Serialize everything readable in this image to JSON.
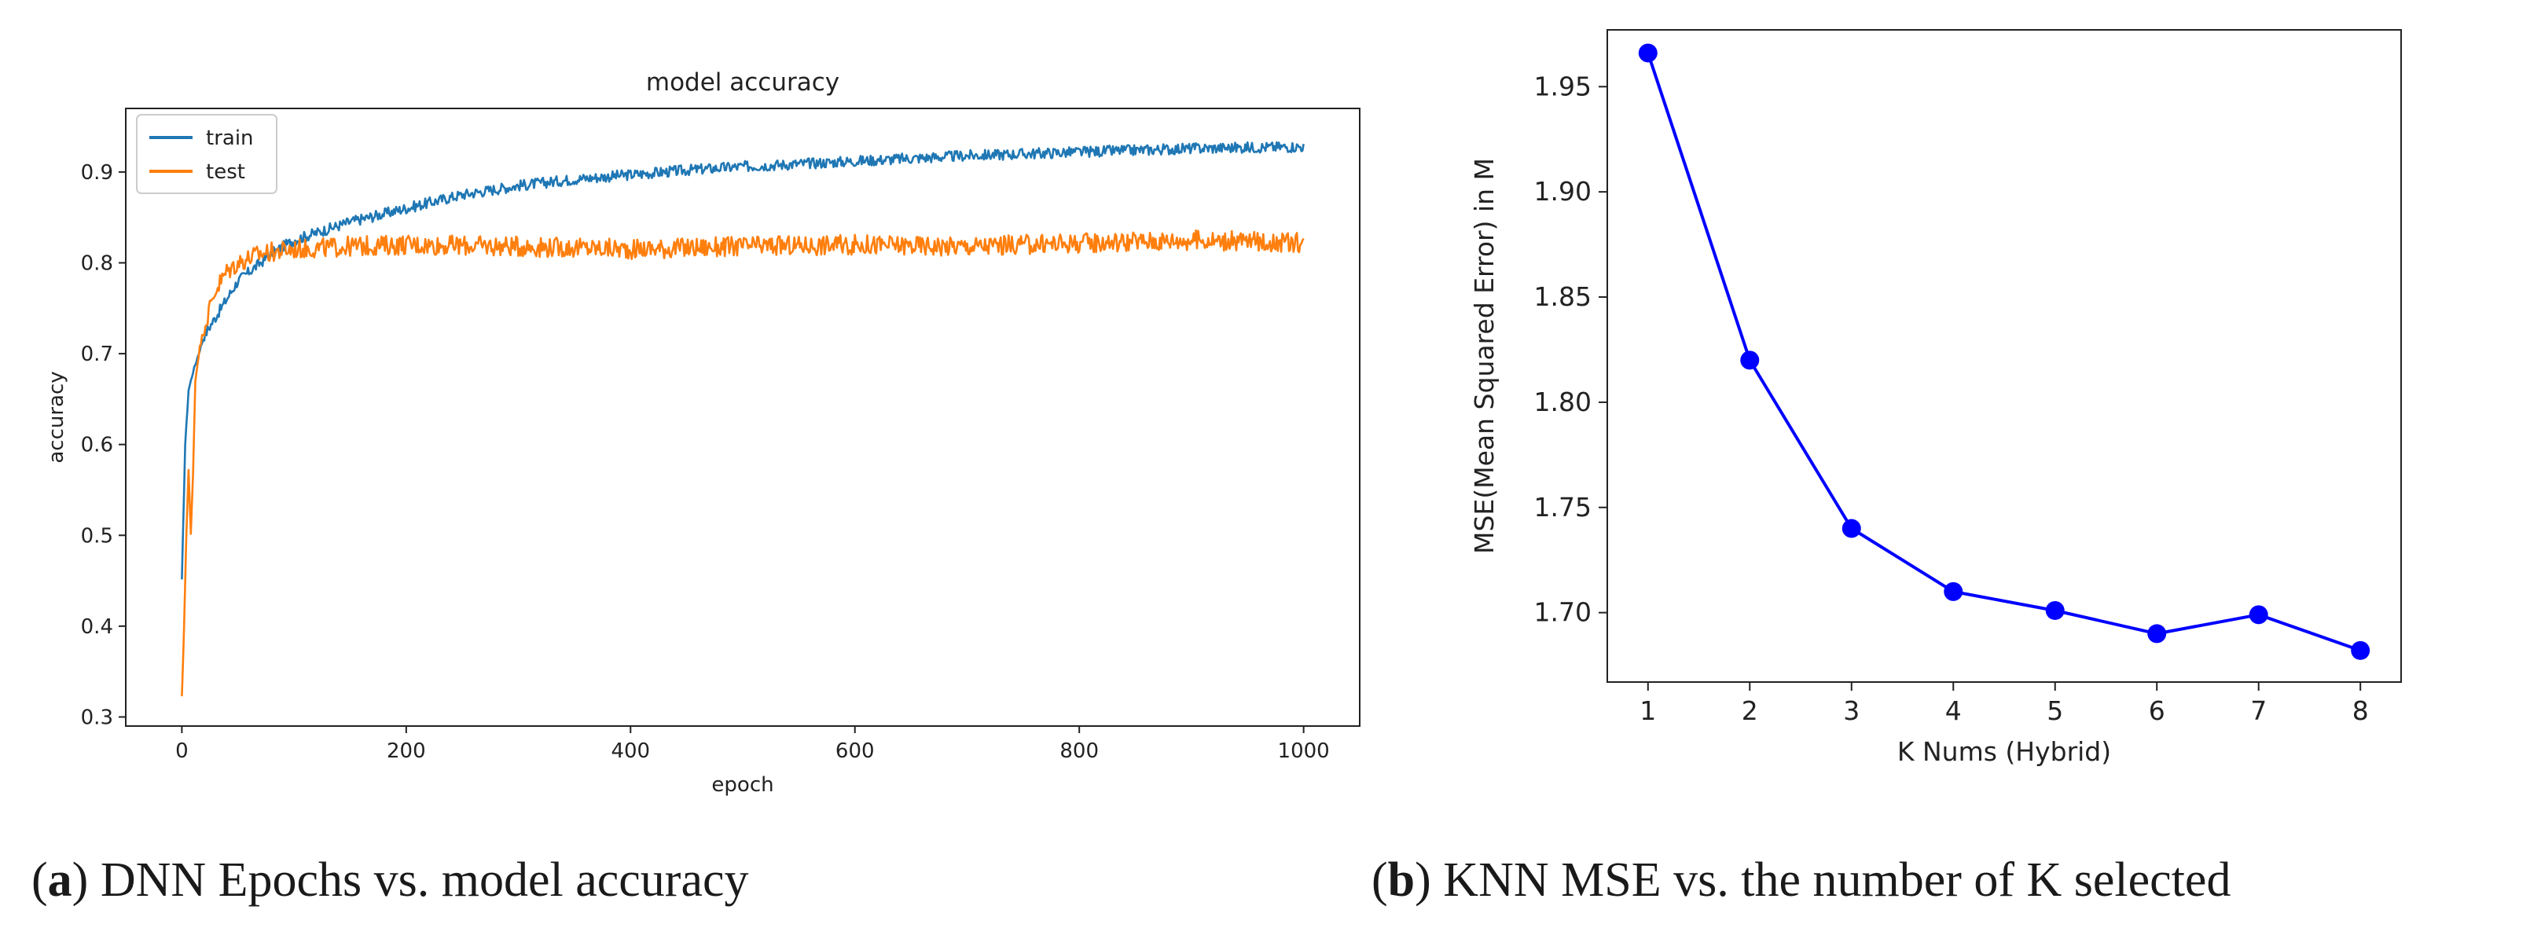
{
  "chart_data": [
    {
      "type": "line",
      "title": "model accuracy",
      "xlabel": "epoch",
      "ylabel": "accuracy",
      "xlim": [
        -50,
        1050
      ],
      "ylim": [
        0.29,
        0.97
      ],
      "xticks": [
        0,
        200,
        400,
        600,
        800,
        1000
      ],
      "yticks": [
        0.3,
        0.4,
        0.5,
        0.6,
        0.7,
        0.8,
        0.9
      ],
      "ytick_labels": [
        "0.3",
        "0.4",
        "0.5",
        "0.6",
        "0.7",
        "0.8",
        "0.9"
      ],
      "legend_position": "top-left",
      "grid": false,
      "series": [
        {
          "name": "train",
          "color": "#1f77b4",
          "x": [
            0,
            3,
            6,
            10,
            15,
            20,
            30,
            40,
            50,
            60,
            70,
            80,
            100,
            125,
            150,
            200,
            250,
            300,
            350,
            400,
            450,
            500,
            550,
            600,
            650,
            700,
            750,
            800,
            850,
            900,
            950,
            1000
          ],
          "values": [
            0.45,
            0.6,
            0.66,
            0.68,
            0.7,
            0.72,
            0.74,
            0.76,
            0.78,
            0.79,
            0.8,
            0.81,
            0.825,
            0.835,
            0.845,
            0.86,
            0.875,
            0.885,
            0.892,
            0.897,
            0.902,
            0.906,
            0.909,
            0.912,
            0.915,
            0.918,
            0.92,
            0.922,
            0.924,
            0.926,
            0.927,
            0.928
          ],
          "noise": 0.006
        },
        {
          "name": "test",
          "color": "#ff7f0e",
          "x": [
            0,
            2,
            4,
            6,
            8,
            10,
            12,
            15,
            20,
            25,
            30,
            40,
            50,
            70,
            100,
            150,
            200,
            300,
            400,
            500,
            600,
            700,
            800,
            900,
            1000
          ],
          "values": [
            0.32,
            0.4,
            0.5,
            0.57,
            0.5,
            0.57,
            0.67,
            0.7,
            0.73,
            0.75,
            0.77,
            0.79,
            0.8,
            0.81,
            0.815,
            0.818,
            0.82,
            0.818,
            0.815,
            0.818,
            0.82,
            0.818,
            0.822,
            0.825,
            0.822
          ],
          "noise": 0.011
        }
      ]
    },
    {
      "type": "line",
      "title": "",
      "xlabel": "K Nums (Hybrid)",
      "ylabel": "MSE(Mean Squared Error) in M",
      "xlim": [
        0.6,
        8.4
      ],
      "ylim": [
        1.667,
        1.977
      ],
      "xticks": [
        1,
        2,
        3,
        4,
        5,
        6,
        7,
        8
      ],
      "yticks": [
        1.7,
        1.75,
        1.8,
        1.85,
        1.9,
        1.95
      ],
      "ytick_labels": [
        "1.70",
        "1.75",
        "1.80",
        "1.85",
        "1.90",
        "1.95"
      ],
      "grid": false,
      "series": [
        {
          "name": "MSE",
          "color": "#0000ff",
          "marker": "circle",
          "x": [
            1,
            2,
            3,
            4,
            5,
            6,
            7,
            8
          ],
          "values": [
            1.966,
            1.82,
            1.74,
            1.71,
            1.701,
            1.69,
            1.699,
            1.682
          ]
        }
      ]
    }
  ],
  "captions": [
    {
      "label": "a",
      "text": "DNN Epochs vs. model accuracy"
    },
    {
      "label": "b",
      "text": "KNN MSE vs. the number of K selected"
    }
  ]
}
